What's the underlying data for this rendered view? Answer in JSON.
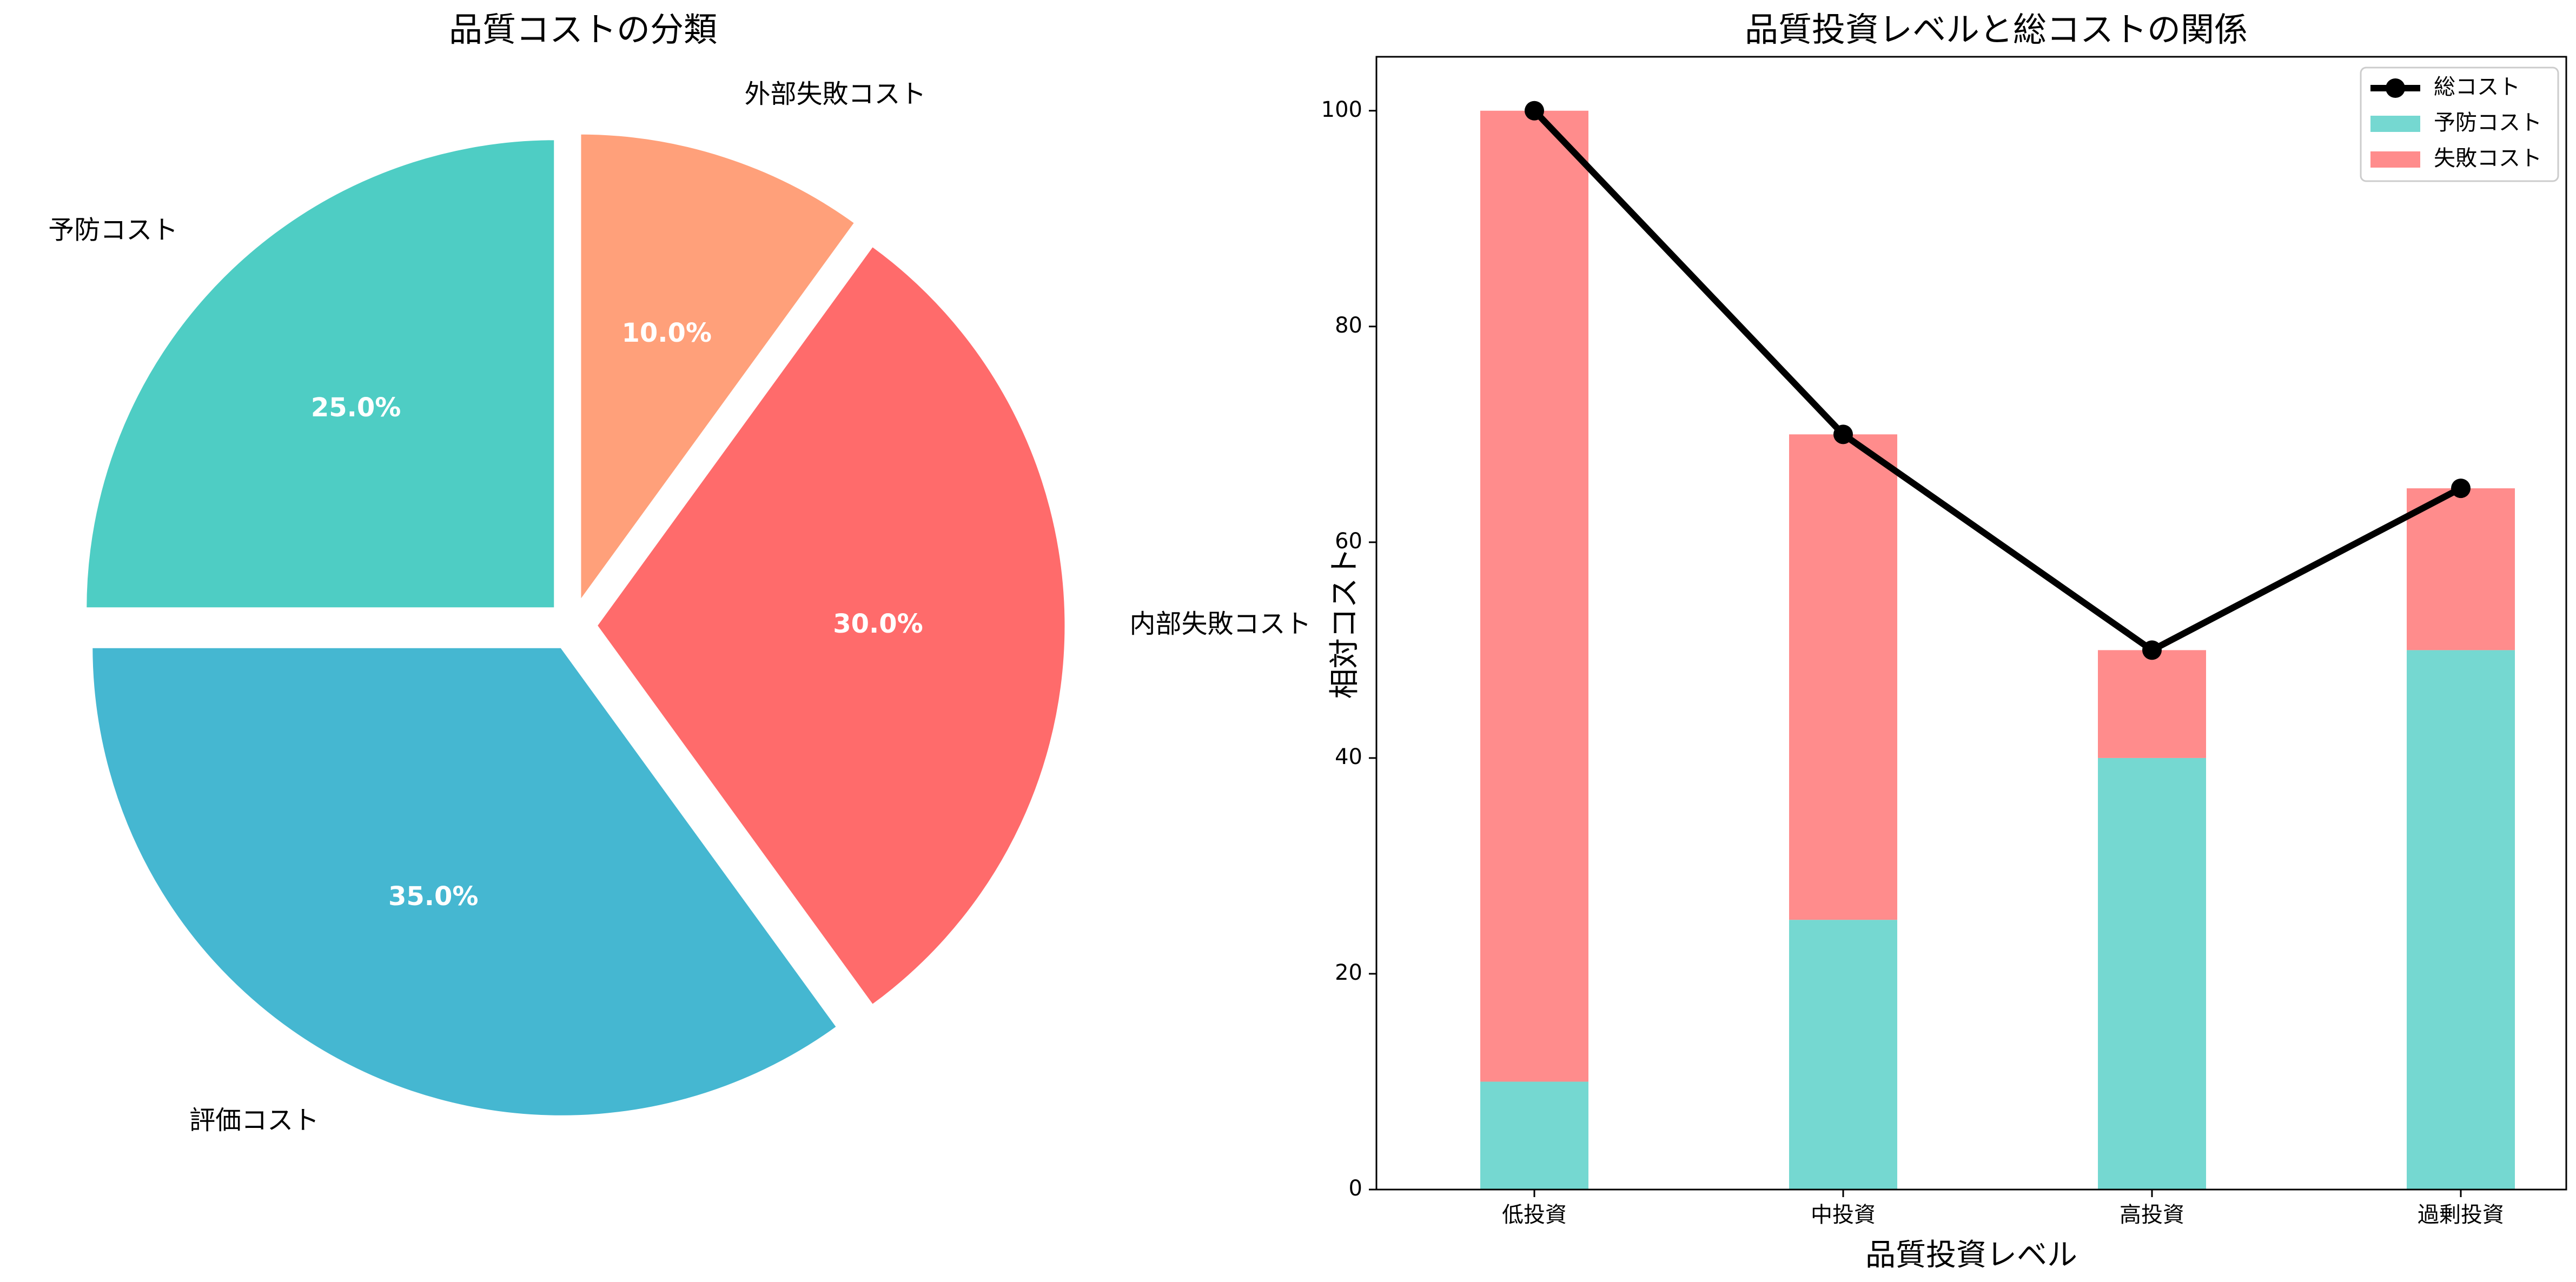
{
  "chart_data": [
    {
      "type": "pie",
      "title": "品質コストの分類",
      "labels": [
        "予防コスト",
        "評価コスト",
        "内部失敗コスト",
        "外部失敗コスト"
      ],
      "values": [
        25.0,
        35.0,
        30.0,
        10.0
      ],
      "percent_labels": [
        "25.0%",
        "35.0%",
        "30.0%",
        "10.0%"
      ],
      "colors": [
        "#4ECDC4",
        "#45B7D1",
        "#FF6B6B",
        "#FFA07A"
      ],
      "exploded": true,
      "start_angle_deg": 90,
      "direction": "counterclockwise"
    },
    {
      "type": "bar",
      "stacked": true,
      "title": "品質投資レベルと総コストの関係",
      "categories": [
        "低投資",
        "中投資",
        "高投資",
        "過剰投資"
      ],
      "xlabel": "品質投資レベル",
      "ylabel": "相対コスト",
      "ylim": [
        0,
        105
      ],
      "yticks": [
        0,
        20,
        40,
        60,
        80,
        100
      ],
      "legend_position": "top-right",
      "series": [
        {
          "name": "予防コスト",
          "kind": "bar",
          "values": [
            10,
            25,
            40,
            50
          ],
          "color": "#4ECDC4"
        },
        {
          "name": "失敗コスト",
          "kind": "bar",
          "values": [
            90,
            45,
            10,
            15
          ],
          "color": "#FF6B6B"
        },
        {
          "name": "総コスト",
          "kind": "line",
          "values": [
            100,
            70,
            50,
            65
          ],
          "color": "#000000"
        }
      ]
    }
  ]
}
